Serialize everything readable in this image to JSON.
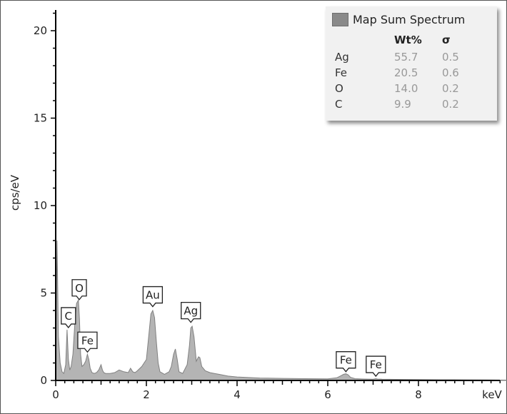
{
  "chart_data": {
    "type": "area",
    "xlabel": "keV",
    "ylabel": "cps/eV",
    "xlim": [
      0,
      10
    ],
    "ylim": [
      0,
      22
    ],
    "x_ticks": [
      0,
      2,
      4,
      6,
      8
    ],
    "y_ticks": [
      0,
      5,
      10,
      15,
      20
    ],
    "grid": false,
    "series": [
      {
        "name": "Map Sum Spectrum",
        "x": [
          0.0,
          0.03,
          0.06,
          0.1,
          0.14,
          0.18,
          0.22,
          0.25,
          0.28,
          0.31,
          0.34,
          0.38,
          0.42,
          0.46,
          0.5,
          0.525,
          0.55,
          0.58,
          0.62,
          0.66,
          0.7,
          0.73,
          0.76,
          0.8,
          0.85,
          0.9,
          0.95,
          1.0,
          1.03,
          1.06,
          1.1,
          1.2,
          1.3,
          1.4,
          1.5,
          1.6,
          1.65,
          1.7,
          1.75,
          1.8,
          1.9,
          2.0,
          2.05,
          2.1,
          2.14,
          2.18,
          2.22,
          2.26,
          2.3,
          2.4,
          2.5,
          2.55,
          2.6,
          2.64,
          2.68,
          2.72,
          2.8,
          2.9,
          2.95,
          2.98,
          3.01,
          3.05,
          3.1,
          3.15,
          3.18,
          3.22,
          3.3,
          3.4,
          3.5,
          3.6,
          3.7,
          3.8,
          4.0,
          4.5,
          5.0,
          5.5,
          6.0,
          6.2,
          6.3,
          6.35,
          6.4,
          6.45,
          6.5,
          6.6,
          6.8,
          7.0,
          7.06,
          7.1,
          7.2,
          7.5,
          8.0,
          8.5,
          9.0,
          9.5,
          10.0
        ],
        "values": [
          0.0,
          8.0,
          2.5,
          1.0,
          0.5,
          0.4,
          0.9,
          2.9,
          1.2,
          0.6,
          0.8,
          1.5,
          3.2,
          4.4,
          4.6,
          3.5,
          1.5,
          0.8,
          0.9,
          1.1,
          1.5,
          1.2,
          0.7,
          0.45,
          0.4,
          0.45,
          0.6,
          0.9,
          0.6,
          0.45,
          0.4,
          0.4,
          0.45,
          0.6,
          0.5,
          0.45,
          0.7,
          0.5,
          0.45,
          0.55,
          0.8,
          1.2,
          2.5,
          3.8,
          4.0,
          3.6,
          2.2,
          1.0,
          0.5,
          0.35,
          0.5,
          0.8,
          1.5,
          1.8,
          1.2,
          0.5,
          0.4,
          0.9,
          2.0,
          3.0,
          3.1,
          2.5,
          1.1,
          1.35,
          1.3,
          0.8,
          0.55,
          0.45,
          0.4,
          0.35,
          0.3,
          0.25,
          0.2,
          0.14,
          0.12,
          0.1,
          0.09,
          0.15,
          0.28,
          0.35,
          0.38,
          0.32,
          0.18,
          0.1,
          0.08,
          0.07,
          0.1,
          0.08,
          0.07,
          0.06,
          0.05,
          0.04,
          0.035,
          0.03,
          0.02
        ]
      }
    ],
    "peak_labels": [
      {
        "label": "C",
        "x": 0.28,
        "y": 2.9
      },
      {
        "label": "O",
        "x": 0.52,
        "y": 4.5
      },
      {
        "label": "Fe",
        "x": 0.7,
        "y": 1.5
      },
      {
        "label": "Au",
        "x": 2.14,
        "y": 4.1
      },
      {
        "label": "Ag",
        "x": 2.98,
        "y": 3.2
      },
      {
        "label": "Fe",
        "x": 6.4,
        "y": 0.38
      },
      {
        "label": "Fe",
        "x": 7.06,
        "y": 0.12
      }
    ],
    "legend": {
      "placement": "top-right",
      "title": "Map Sum Spectrum",
      "col_wt": "Wt%",
      "col_sigma": "σ",
      "rows": [
        {
          "element": "Ag",
          "wt": "55.7",
          "sigma": "0.5"
        },
        {
          "element": "Fe",
          "wt": "20.5",
          "sigma": "0.6"
        },
        {
          "element": "O",
          "wt": "14.0",
          "sigma": "0.2"
        },
        {
          "element": "C",
          "wt": "9.9",
          "sigma": "0.2"
        }
      ]
    },
    "colors": {
      "fill": "#b4b4b4",
      "stroke": "#808080",
      "axis": "#000000"
    }
  }
}
